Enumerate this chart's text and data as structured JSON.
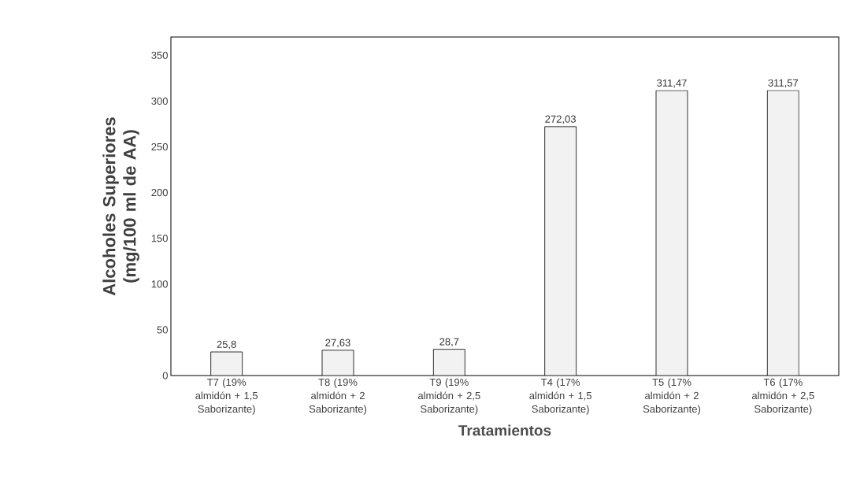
{
  "chart_data": {
    "type": "bar",
    "xlabel": "Tratamientos",
    "ylabel": "Alcoholes Superiores (mg/100 ml de AA)",
    "categories": [
      "T7 (19% almidón + 1,5 Saborizante)",
      "T8 (19% almidón + 2 Saborizante)",
      "T9 (19% almidón + 2,5 Saborizante)",
      "T4 (17% almidón + 1,5 Saborizante)",
      "T5 (17% almidón + 2 Saborizante)",
      "T6 (17% almidón + 2,5 Saborizante)"
    ],
    "values": [
      25.8,
      27.63,
      28.7,
      272.03,
      311.47,
      311.57
    ],
    "value_labels": [
      "25,8",
      "27,63",
      "28,7",
      "272,03",
      "311,47",
      "311,57"
    ],
    "color": "#f2f2f2",
    "ylim": [
      0,
      370
    ],
    "yticks": [
      0,
      50,
      100,
      150,
      200,
      250,
      300,
      350
    ],
    "grid": false
  }
}
